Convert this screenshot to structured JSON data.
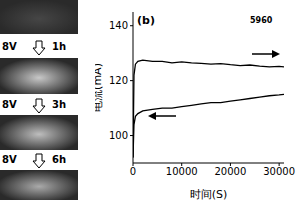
{
  "left_panel": {
    "steps": [
      {
        "voltage": "8V",
        "time": "1h"
      },
      {
        "voltage": "8V",
        "time": "3h"
      },
      {
        "voltage": "8V",
        "time": "6h"
      }
    ]
  },
  "chart_data": {
    "type": "line",
    "panel_label": "(b)",
    "annotation": "5960",
    "x_label": "时间(S)",
    "y_label": "电流(mA)",
    "x": [
      0,
      200,
      500,
      1000,
      2000,
      4000,
      6000,
      8000,
      10000,
      12000,
      14000,
      16000,
      18000,
      20000,
      22000,
      24000,
      26000,
      28000,
      30000,
      31000
    ],
    "series": [
      {
        "color": "#000000",
        "values": [
          92,
          122,
          126,
          127,
          127.5,
          127,
          127,
          126.5,
          126.8,
          126.5,
          126.3,
          126,
          126.2,
          125.8,
          125.5,
          125.7,
          125.3,
          125,
          125.2,
          125
        ]
      },
      {
        "color": "#000000",
        "values": [
          92,
          104,
          107,
          108,
          109,
          109.5,
          110,
          110,
          110.5,
          111,
          111.5,
          112,
          112,
          112.5,
          113,
          113.5,
          114,
          114.5,
          114.8,
          115
        ]
      }
    ],
    "xlim": [
      0,
      31000
    ],
    "ylim": [
      90,
      145
    ],
    "xticks": [
      0,
      10000,
      20000,
      30000
    ],
    "yticks": [
      100,
      120,
      140
    ],
    "grid": false
  }
}
